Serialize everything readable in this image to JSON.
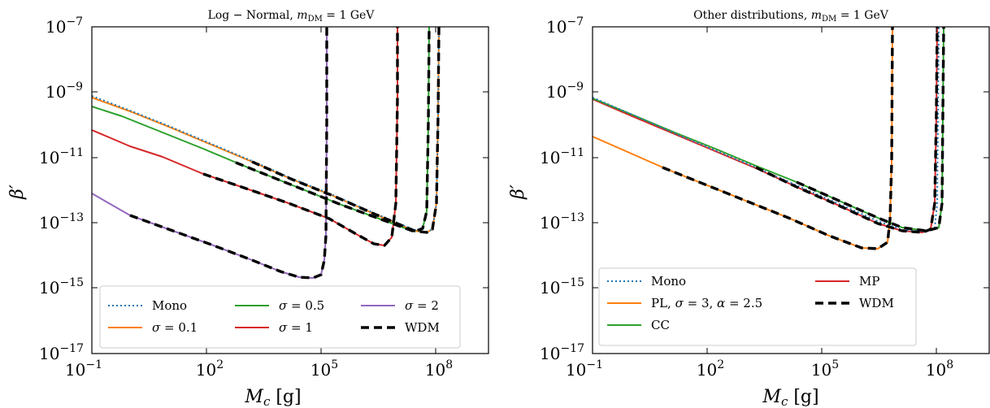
{
  "panels": [
    {
      "title": "Log − Normal, m_DM = 1 GeV",
      "xlabel": "M_c [g]",
      "ylabel": "β′",
      "x_ticks": [
        "10^-1",
        "10^2",
        "10^5",
        "10^8"
      ],
      "y_ticks": [
        "10^-7",
        "10^-9",
        "10^-11",
        "10^-13",
        "10^-15",
        "10^-17"
      ],
      "legend": [
        "Mono",
        "σ = 0.1",
        "σ = 0.5",
        "σ = 1",
        "σ = 2",
        "WDM"
      ]
    },
    {
      "title": "Other distributions, m_DM = 1 GeV",
      "xlabel": "M_c [g]",
      "ylabel": "β′",
      "x_ticks": [
        "10^-1",
        "10^2",
        "10^5",
        "10^8"
      ],
      "y_ticks": [
        "10^-7",
        "10^-9",
        "10^-11",
        "10^-13",
        "10^-15",
        "10^-17"
      ],
      "legend": [
        "Mono",
        "MP",
        "PL, σ = 3, α = 2.5",
        "WDM",
        "CC"
      ]
    }
  ],
  "chart_data": [
    {
      "type": "line",
      "title": "Log − Normal, m_DM = 1 GeV",
      "xlabel": "M_c [g]",
      "ylabel": "β′",
      "x_scale": "log",
      "y_scale": "log",
      "xlim": [
        0.1,
        30000000000.0
      ],
      "ylim": [
        1e-17,
        1e-07
      ],
      "legend_position": "lower-center",
      "series": [
        {
          "name": "Mono",
          "color": "#1f77b4",
          "style": "dotted",
          "x": [
            0.1,
            1000,
            200000000.0
          ],
          "y": [
            8e-10,
            8e-12,
            2.5e-14
          ],
          "wall_x": 200000000.0
        },
        {
          "name": "σ = 0.1",
          "color": "#ff7f0e",
          "style": "solid",
          "x": [
            0.1,
            1000,
            200000000.0
          ],
          "y": [
            7.5e-10,
            7e-12,
            2.5e-14
          ],
          "wall_x": 200000000.0
        },
        {
          "name": "σ = 0.5",
          "color": "#2ca02c",
          "style": "solid",
          "x": [
            0.1,
            1000,
            50000000.0
          ],
          "y": [
            4e-10,
            4e-12,
            3e-14
          ],
          "wall_x": 150000000.0
        },
        {
          "name": "σ = 1",
          "color": "#d62728",
          "style": "solid",
          "x": [
            0.1,
            1000,
            5000000.0
          ],
          "y": [
            7e-11,
            7e-13,
            2e-14
          ],
          "wall_x": 20000000.0
        },
        {
          "name": "σ = 2",
          "color": "#9467bd",
          "style": "solid",
          "x": [
            0.1,
            1000,
            100000.0
          ],
          "y": [
            7e-13,
            6e-15,
            1.7e-15
          ],
          "wall_x": 300000.0
        },
        {
          "name": "WDM",
          "color": "#000000",
          "style": "dashed",
          "segments": "overlays each distribution from M_c ≈ 1 g onward"
        }
      ]
    },
    {
      "type": "line",
      "title": "Other distributions, m_DM = 1 GeV",
      "xlabel": "M_c [g]",
      "ylabel": "β′",
      "x_scale": "log",
      "y_scale": "log",
      "xlim": [
        0.1,
        30000000000.0
      ],
      "ylim": [
        1e-17,
        1e-07
      ],
      "legend_position": "lower-left",
      "series": [
        {
          "name": "Mono",
          "color": "#1f77b4",
          "style": "dotted",
          "x": [
            0.1,
            1000,
            100000000.0
          ],
          "y": [
            7e-10,
            6e-12,
            4.5e-14
          ],
          "wall_x": 250000000.0
        },
        {
          "name": "MP",
          "color": "#d62728",
          "style": "solid",
          "x": [
            0.1,
            1000,
            100000000.0
          ],
          "y": [
            7e-10,
            6e-12,
            4.5e-14
          ],
          "wall_x": 250000000.0
        },
        {
          "name": "PL, σ = 3, α = 2.5",
          "color": "#ff7f0e",
          "style": "solid",
          "x": [
            0.1,
            1000,
            500000.0
          ],
          "y": [
            5e-11,
            8e-13,
            2e-14
          ],
          "wall_x": 3000000.0
        },
        {
          "name": "CC",
          "color": "#2ca02c",
          "style": "solid",
          "x": [
            0.1,
            1000,
            100000000.0
          ],
          "y": [
            7e-10,
            7e-12,
            4.5e-14
          ],
          "wall_x": 250000000.0
        },
        {
          "name": "WDM",
          "color": "#000000",
          "style": "dashed",
          "segments": "overlays each distribution from M_c ≈ 1 g onward"
        }
      ]
    }
  ]
}
